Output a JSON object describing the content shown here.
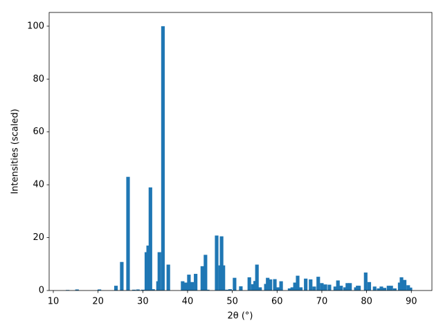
{
  "chart_data": {
    "type": "bar",
    "x": [
      13.2,
      15.3,
      20.3,
      24.0,
      25.3,
      26.7,
      28.0,
      28.9,
      30.0,
      30.8,
      31.2,
      31.7,
      32.3,
      33.4,
      33.7,
      34.5,
      35.7,
      38.9,
      39.6,
      40.3,
      41.0,
      41.8,
      43.3,
      44.0,
      44.5,
      46.5,
      47.3,
      47.6,
      48.0,
      48.8,
      49.5,
      50.5,
      51.9,
      53.8,
      54.6,
      55.1,
      55.5,
      56.2,
      57.5,
      57.9,
      58.5,
      59.5,
      60.2,
      60.9,
      62.8,
      63.4,
      64.0,
      64.6,
      65.3,
      66.4,
      67.5,
      68.3,
      69.2,
      70.0,
      70.8,
      71.7,
      73.0,
      73.6,
      74.3,
      75.2,
      75.7,
      76.3,
      77.6,
      78.0,
      78.3,
      79.8,
      80.6,
      81.8,
      82.7,
      83.3,
      84.0,
      84.9,
      85.5,
      86.3,
      87.4,
      87.8,
      88.5,
      89.3,
      89.8
    ],
    "values": [
      0.2,
      0.4,
      0.4,
      1.8,
      10.8,
      43,
      0.3,
      0.4,
      0.3,
      14.5,
      17,
      39,
      0.5,
      3.5,
      14.5,
      100,
      9.8,
      3.5,
      3,
      6,
      3.2,
      6.3,
      9.2,
      13.5,
      0.3,
      20.8,
      9.5,
      20.5,
      9.5,
      0.3,
      0.5,
      4.8,
      1.6,
      5,
      2.4,
      3.6,
      9.8,
      1.2,
      2.5,
      4.8,
      4.2,
      4.3,
      1.2,
      3.5,
      0.8,
      1.2,
      3,
      5.6,
      1.2,
      4.5,
      4.2,
      1.5,
      5.2,
      2.8,
      2.3,
      2.2,
      1.5,
      3.8,
      1.8,
      1.2,
      2.8,
      2.8,
      1.2,
      1.8,
      1.8,
      6.8,
      3.2,
      1.5,
      0.8,
      1.5,
      1,
      1.8,
      1.8,
      0.8,
      3,
      5,
      4,
      2,
      1.1
    ],
    "color": "#1f77b4",
    "xlabel": "2θ (°)",
    "ylabel": "Intensities (scaled)",
    "xlim": [
      9.07,
      94.6
    ],
    "ylim": [
      0,
      105.2
    ],
    "xticks": [
      10,
      20,
      30,
      40,
      50,
      60,
      70,
      80,
      90
    ],
    "yticks": [
      0,
      20,
      40,
      60,
      80,
      100
    ]
  }
}
